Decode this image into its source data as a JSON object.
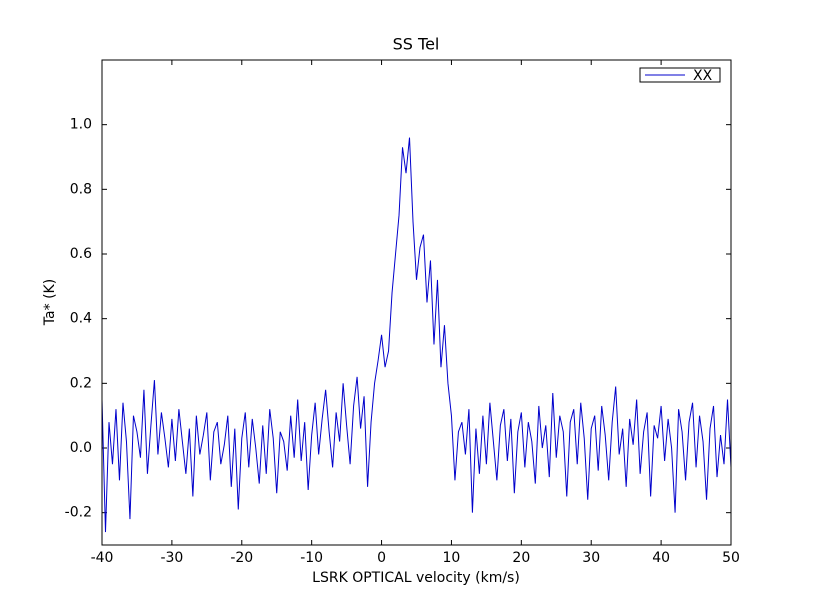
{
  "chart_data": {
    "type": "line",
    "title": "SS Tel",
    "x_label": "LSRK OPTICAL velocity (km/s)",
    "y_label": "Ta* (K)",
    "x": [
      -40,
      -39.5,
      -39,
      -38.5,
      -38,
      -37.5,
      -37,
      -36.5,
      -36,
      -35.5,
      -35,
      -34.5,
      -34,
      -33.5,
      -33,
      -32.5,
      -32,
      -31.5,
      -31,
      -30.5,
      -30,
      -29.5,
      -29,
      -28.5,
      -28,
      -27.5,
      -27,
      -26.5,
      -26,
      -25.5,
      -25,
      -24.5,
      -24,
      -23.5,
      -23,
      -22.5,
      -22,
      -21.5,
      -21,
      -20.5,
      -20,
      -19.5,
      -19,
      -18.5,
      -18,
      -17.5,
      -17,
      -16.5,
      -16,
      -15.5,
      -15,
      -14.5,
      -14,
      -13.5,
      -13,
      -12.5,
      -12,
      -11.5,
      -11,
      -10.5,
      -10,
      -9.5,
      -9,
      -8.5,
      -8,
      -7.5,
      -7,
      -6.5,
      -6,
      -5.5,
      -5,
      -4.5,
      -4,
      -3.5,
      -3,
      -2.5,
      -2,
      -1.5,
      -1,
      -0.5,
      0,
      0.5,
      1,
      1.5,
      2,
      2.5,
      3,
      3.5,
      4,
      4.5,
      5,
      5.5,
      6,
      6.5,
      7,
      7.5,
      8,
      8.5,
      9,
      9.5,
      10,
      10.5,
      11,
      11.5,
      12,
      12.5,
      13,
      13.5,
      14,
      14.5,
      15,
      15.5,
      16,
      16.5,
      17,
      17.5,
      18,
      18.5,
      19,
      19.5,
      20,
      20.5,
      21,
      21.5,
      22,
      22.5,
      23,
      23.5,
      24,
      24.5,
      25,
      25.5,
      26,
      26.5,
      27,
      27.5,
      28,
      28.5,
      29,
      29.5,
      30,
      30.5,
      31,
      31.5,
      32,
      32.5,
      33,
      33.5,
      34,
      34.5,
      35,
      35.5,
      36,
      36.5,
      37,
      37.5,
      38,
      38.5,
      39,
      39.5,
      40,
      40.5,
      41,
      41.5,
      42,
      42.5,
      43,
      43.5,
      44,
      44.5,
      45,
      45.5,
      46,
      46.5,
      47,
      47.5,
      48,
      48.5,
      49,
      49.5,
      50
    ],
    "series": [
      {
        "name": "XX",
        "color": "#0000cc",
        "values": [
          0.15,
          -0.26,
          0.08,
          -0.05,
          0.12,
          -0.1,
          0.14,
          0.02,
          -0.22,
          0.1,
          0.05,
          -0.03,
          0.18,
          -0.08,
          0.07,
          0.21,
          -0.02,
          0.11,
          0.03,
          -0.06,
          0.09,
          -0.04,
          0.12,
          0.02,
          -0.08,
          0.06,
          -0.15,
          0.1,
          -0.02,
          0.04,
          0.11,
          -0.1,
          0.05,
          0.08,
          -0.05,
          0.01,
          0.1,
          -0.12,
          0.06,
          -0.19,
          0.03,
          0.11,
          -0.06,
          0.09,
          0.0,
          -0.11,
          0.07,
          -0.08,
          0.12,
          0.03,
          -0.14,
          0.05,
          0.02,
          -0.07,
          0.1,
          -0.03,
          0.15,
          -0.04,
          0.08,
          -0.13,
          0.04,
          0.14,
          -0.02,
          0.09,
          0.18,
          0.05,
          -0.06,
          0.11,
          0.02,
          0.2,
          0.07,
          -0.05,
          0.13,
          0.22,
          0.06,
          0.16,
          -0.12,
          0.08,
          0.2,
          0.27,
          0.35,
          0.25,
          0.3,
          0.48,
          0.6,
          0.72,
          0.93,
          0.85,
          0.96,
          0.7,
          0.52,
          0.62,
          0.66,
          0.45,
          0.58,
          0.32,
          0.52,
          0.25,
          0.38,
          0.2,
          0.1,
          -0.1,
          0.05,
          0.08,
          -0.02,
          0.12,
          -0.2,
          0.06,
          -0.08,
          0.1,
          -0.05,
          0.14,
          0.02,
          -0.1,
          0.07,
          0.12,
          -0.04,
          0.09,
          -0.14,
          0.05,
          0.11,
          -0.06,
          0.08,
          0.02,
          -0.11,
          0.13,
          0.0,
          0.07,
          -0.09,
          0.17,
          -0.03,
          0.1,
          0.05,
          -0.15,
          0.08,
          0.12,
          -0.05,
          0.14,
          0.03,
          -0.16,
          0.06,
          0.1,
          -0.07,
          0.13,
          0.04,
          -0.1,
          0.08,
          0.19,
          -0.02,
          0.06,
          -0.12,
          0.09,
          0.01,
          0.15,
          -0.08,
          0.05,
          0.11,
          -0.15,
          0.07,
          0.03,
          0.13,
          -0.04,
          0.09,
          0.0,
          -0.2,
          0.12,
          0.05,
          -0.1,
          0.08,
          0.14,
          -0.06,
          0.1,
          0.02,
          -0.16,
          0.06,
          0.13,
          -0.09,
          0.04,
          -0.05,
          0.15,
          -0.06
        ]
      }
    ],
    "xlim": [
      -40,
      50
    ],
    "xticks": [
      -40,
      -30,
      -20,
      -10,
      0,
      10,
      20,
      30,
      40,
      50
    ],
    "ylim": [
      -0.3,
      1.2
    ],
    "yticks": [
      -0.2,
      {
        "value": 0,
        "label": "0.0"
      },
      0.2,
      0.4,
      0.6,
      0.8,
      {
        "value": 1,
        "label": "1.0"
      }
    ],
    "grid": false,
    "legend": "upper right"
  }
}
